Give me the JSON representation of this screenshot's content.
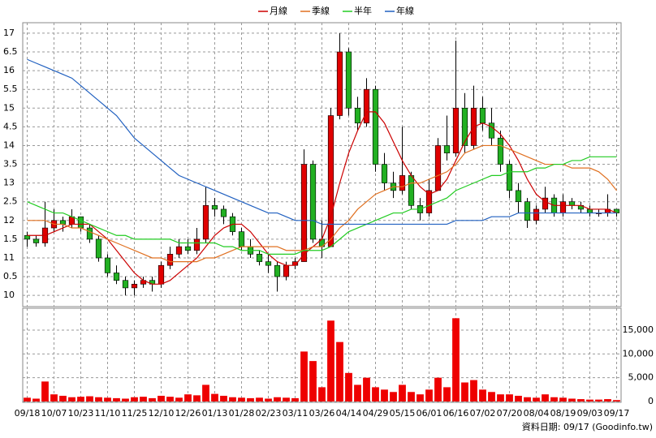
{
  "chart_data": [
    {
      "type": "candlestick",
      "categories": [
        "09/18",
        null,
        null,
        "10/07",
        null,
        null,
        "10/23",
        null,
        null,
        "11/10",
        null,
        null,
        "11/25",
        null,
        null,
        "12/10",
        null,
        null,
        "12/26",
        null,
        null,
        "01/13",
        null,
        null,
        "01/28",
        null,
        null,
        "02/23",
        null,
        null,
        "03/11",
        null,
        null,
        "03/26",
        null,
        null,
        "04/14",
        null,
        null,
        "04/29",
        null,
        null,
        "05/15",
        null,
        null,
        "06/01",
        null,
        null,
        "06/16",
        null,
        null,
        "07/02",
        null,
        null,
        "07/20",
        null,
        null,
        "08/04",
        null,
        null,
        "08/19",
        null,
        null,
        "09/03",
        null,
        null,
        "09/17"
      ],
      "open": [
        11.6,
        11.5,
        11.4,
        11.8,
        12.0,
        11.9,
        12.1,
        11.8,
        11.5,
        11.0,
        10.6,
        10.4,
        10.2,
        10.3,
        10.4,
        10.3,
        10.8,
        11.1,
        11.3,
        11.2,
        11.5,
        12.4,
        12.3,
        12.1,
        11.7,
        11.3,
        11.1,
        10.9,
        10.8,
        10.5,
        10.8,
        10.9,
        13.5,
        11.5,
        11.3,
        14.8,
        16.5,
        15.0,
        14.6,
        15.5,
        13.5,
        13.0,
        12.8,
        13.2,
        12.4,
        12.2,
        12.8,
        14.0,
        13.8,
        15.0,
        14.0,
        15.0,
        14.6,
        14.2,
        13.5,
        12.8,
        12.5,
        12.0,
        12.3,
        12.6,
        12.2,
        12.5,
        12.4,
        12.3,
        12.2,
        12.2,
        12.3
      ],
      "high": [
        11.7,
        11.6,
        12.5,
        12.3,
        12.1,
        12.3,
        12.1,
        11.9,
        11.6,
        11.1,
        10.8,
        10.5,
        10.4,
        10.5,
        10.5,
        10.9,
        11.3,
        11.5,
        11.5,
        11.8,
        12.9,
        12.6,
        12.4,
        12.2,
        11.8,
        11.5,
        11.2,
        11.1,
        10.9,
        10.9,
        11.0,
        13.9,
        13.6,
        12.0,
        15.0,
        17.0,
        16.6,
        15.3,
        15.8,
        15.6,
        13.8,
        13.3,
        14.5,
        13.3,
        12.6,
        13.1,
        14.2,
        14.8,
        16.8,
        15.4,
        15.6,
        15.3,
        15.0,
        14.4,
        13.6,
        13.0,
        12.6,
        12.4,
        12.9,
        12.7,
        12.7,
        12.6,
        12.5,
        12.4,
        12.3,
        12.7,
        12.3
      ],
      "low": [
        11.3,
        11.3,
        11.3,
        11.7,
        11.7,
        11.8,
        11.7,
        11.4,
        10.9,
        10.5,
        10.3,
        10.0,
        10.0,
        10.2,
        10.1,
        10.2,
        10.7,
        11.0,
        11.1,
        11.1,
        11.4,
        12.1,
        11.9,
        11.6,
        11.2,
        11.0,
        10.8,
        10.6,
        10.1,
        10.4,
        10.7,
        10.9,
        11.4,
        11.0,
        11.3,
        14.7,
        14.8,
        14.4,
        14.5,
        13.3,
        12.8,
        12.6,
        12.7,
        12.3,
        12.0,
        12.1,
        12.8,
        13.6,
        13.7,
        13.8,
        13.9,
        14.4,
        14.0,
        13.3,
        12.6,
        12.2,
        11.8,
        11.9,
        12.2,
        12.1,
        12.1,
        12.3,
        12.2,
        12.1,
        12.1,
        12.1,
        12.1
      ],
      "close": [
        11.5,
        11.4,
        11.8,
        12.0,
        11.9,
        12.1,
        11.8,
        11.5,
        11.0,
        10.6,
        10.4,
        10.2,
        10.3,
        10.4,
        10.3,
        10.8,
        11.1,
        11.3,
        11.2,
        11.5,
        12.4,
        12.3,
        12.1,
        11.7,
        11.3,
        11.1,
        10.9,
        10.8,
        10.5,
        10.8,
        10.9,
        13.5,
        11.5,
        11.3,
        14.8,
        16.5,
        15.0,
        14.6,
        15.5,
        13.5,
        13.0,
        12.8,
        13.2,
        12.4,
        12.2,
        12.8,
        14.0,
        13.8,
        15.0,
        14.0,
        15.0,
        14.6,
        14.2,
        13.5,
        12.8,
        12.5,
        12.0,
        12.3,
        12.6,
        12.2,
        12.5,
        12.4,
        12.3,
        12.2,
        12.2,
        12.3,
        12.2
      ],
      "up_color": "#e00000",
      "down_color": "#22b022",
      "series": [
        {
          "name": "月線",
          "color": "#cc0000",
          "values": [
            11.6,
            11.6,
            11.6,
            11.7,
            11.8,
            11.9,
            11.9,
            11.9,
            11.7,
            11.5,
            11.2,
            10.9,
            10.6,
            10.4,
            10.3,
            10.3,
            10.4,
            10.6,
            10.8,
            11.0,
            11.3,
            11.6,
            11.8,
            11.9,
            11.9,
            11.7,
            11.4,
            11.1,
            10.9,
            10.8,
            10.8,
            11.1,
            11.3,
            11.5,
            12.1,
            13.0,
            13.8,
            14.4,
            14.9,
            14.9,
            14.6,
            14.1,
            13.6,
            13.2,
            12.9,
            12.7,
            12.8,
            13.1,
            13.6,
            14.1,
            14.5,
            14.6,
            14.5,
            14.3,
            14.0,
            13.6,
            13.1,
            12.7,
            12.5,
            12.4,
            12.4,
            12.4,
            12.4,
            12.3,
            12.3,
            12.3,
            12.2
          ]
        },
        {
          "name": "季線",
          "color": "#e07020",
          "values": [
            12.0,
            12.0,
            12.0,
            11.9,
            11.9,
            11.8,
            11.8,
            11.7,
            11.6,
            11.5,
            11.4,
            11.3,
            11.2,
            11.1,
            11.0,
            11.0,
            10.9,
            10.9,
            10.9,
            10.9,
            11.0,
            11.0,
            11.1,
            11.2,
            11.3,
            11.3,
            11.3,
            11.3,
            11.3,
            11.2,
            11.2,
            11.2,
            11.3,
            11.3,
            11.5,
            11.8,
            12.0,
            12.3,
            12.5,
            12.7,
            12.8,
            12.9,
            12.9,
            13.0,
            13.0,
            13.1,
            13.2,
            13.3,
            13.5,
            13.8,
            13.9,
            14.0,
            14.0,
            14.0,
            13.9,
            13.8,
            13.7,
            13.6,
            13.5,
            13.5,
            13.5,
            13.4,
            13.4,
            13.4,
            13.3,
            13.1,
            12.8
          ]
        },
        {
          "name": "半年",
          "color": "#22cc22",
          "values": [
            12.5,
            12.4,
            12.3,
            12.2,
            12.2,
            12.1,
            12.0,
            11.9,
            11.8,
            11.7,
            11.6,
            11.6,
            11.5,
            11.5,
            11.5,
            11.5,
            11.5,
            11.4,
            11.4,
            11.4,
            11.4,
            11.4,
            11.3,
            11.3,
            11.2,
            11.2,
            11.2,
            11.1,
            11.1,
            11.1,
            11.1,
            11.2,
            11.2,
            11.2,
            11.3,
            11.5,
            11.7,
            11.8,
            11.9,
            12.0,
            12.1,
            12.2,
            12.2,
            12.3,
            12.3,
            12.4,
            12.5,
            12.6,
            12.8,
            12.9,
            13.0,
            13.1,
            13.2,
            13.2,
            13.3,
            13.3,
            13.3,
            13.4,
            13.4,
            13.5,
            13.5,
            13.6,
            13.6,
            13.7,
            13.7,
            13.7,
            13.7
          ]
        },
        {
          "name": "年線",
          "color": "#2060c0",
          "values": [
            16.3,
            16.2,
            16.1,
            16.0,
            15.9,
            15.8,
            15.6,
            15.4,
            15.2,
            15.0,
            14.8,
            14.5,
            14.2,
            14.0,
            13.8,
            13.6,
            13.4,
            13.2,
            13.1,
            13.0,
            12.9,
            12.8,
            12.7,
            12.6,
            12.5,
            12.4,
            12.3,
            12.2,
            12.2,
            12.1,
            12.0,
            12.0,
            12.0,
            11.9,
            11.9,
            11.9,
            11.9,
            11.9,
            11.9,
            11.9,
            11.9,
            11.9,
            11.9,
            11.9,
            11.9,
            11.9,
            11.9,
            11.9,
            12.0,
            12.0,
            12.0,
            12.0,
            12.1,
            12.1,
            12.1,
            12.2,
            12.2,
            12.2,
            12.2,
            12.2,
            12.2,
            12.2,
            12.2,
            12.2,
            12.2,
            12.2,
            12.2
          ]
        }
      ],
      "ylim": [
        9.7,
        17.28
      ],
      "yticks": [
        10,
        {
          "value": 10.5,
          "label": "0.5"
        },
        11,
        {
          "value": 11.5,
          "label": "1.5"
        },
        12,
        {
          "value": 12.5,
          "label": "2.5"
        },
        13,
        {
          "value": 13.5,
          "label": "3.5"
        },
        14,
        {
          "value": 14.5,
          "label": "4.5"
        },
        15,
        {
          "value": 15.5,
          "label": "5.5"
        },
        16,
        {
          "value": 16.5,
          "label": "6.5"
        },
        17
      ],
      "grid": true
    },
    {
      "type": "bar",
      "color": "#ee0000",
      "values": [
        800,
        600,
        4200,
        1500,
        1200,
        900,
        1000,
        1100,
        900,
        800,
        700,
        600,
        900,
        1000,
        700,
        1200,
        1000,
        800,
        1500,
        1300,
        3500,
        1600,
        1200,
        900,
        800,
        700,
        800,
        600,
        900,
        800,
        700,
        10500,
        8500,
        3000,
        17000,
        12500,
        6000,
        3500,
        5000,
        3000,
        2500,
        2000,
        3500,
        2000,
        1500,
        2500,
        5000,
        3000,
        17500,
        4000,
        4500,
        2500,
        2000,
        1500,
        1500,
        1200,
        900,
        800,
        1500,
        900,
        800,
        600,
        500,
        400,
        400,
        500,
        300
      ],
      "ylim": [
        0,
        19600
      ],
      "yticks": [
        0,
        {
          "value": 5000,
          "label": "5,000"
        },
        {
          "value": 10000,
          "label": "10,000"
        },
        {
          "value": 15000,
          "label": "15,000"
        }
      ],
      "grid": true
    }
  ],
  "source": "資料日期: 09/17  (Goodinfo.tw)"
}
